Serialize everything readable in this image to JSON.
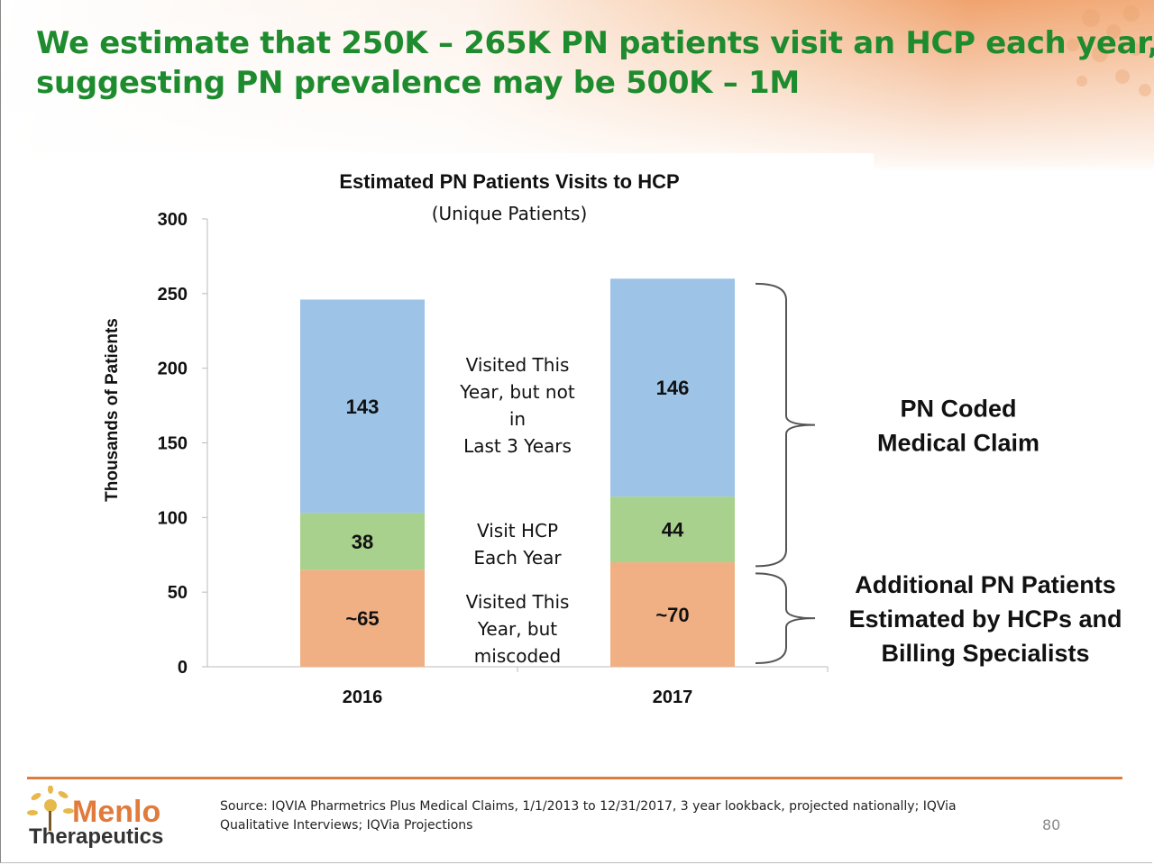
{
  "title": {
    "line1": "We estimate that 250K – 265K PN patients visit an HCP each year,",
    "line2": "suggesting PN prevalence may be 500K – 1M"
  },
  "chart_data": {
    "type": "bar",
    "stacked": true,
    "title": "Estimated PN Patients Visits to HCP",
    "subtitle": "(Unique Patients)",
    "ylabel": "Thousands of Patients",
    "xlabel": "",
    "ylim": [
      0,
      300
    ],
    "yticks": [
      0,
      50,
      100,
      150,
      200,
      250,
      300
    ],
    "categories": [
      "2016",
      "2017"
    ],
    "series": [
      {
        "name": "Visited This Year, but miscoded",
        "values": [
          65,
          70
        ],
        "labels": [
          "~65",
          "~70"
        ],
        "color": "#f0b084"
      },
      {
        "name": "Visit HCP Each Year",
        "values": [
          38,
          44
        ],
        "labels": [
          "38",
          "44"
        ],
        "color": "#a8d18d"
      },
      {
        "name": "Visited This Year, but not in Last 3 Years",
        "values": [
          143,
          146
        ],
        "labels": [
          "143",
          "146"
        ],
        "color": "#9dc3e6"
      }
    ],
    "middle_labels": [
      [
        "Visited This",
        "Year, but not",
        "in",
        "Last 3 Years"
      ],
      [
        "Visit HCP",
        "Each Year"
      ],
      [
        "Visited This",
        "Year, but",
        "miscoded"
      ]
    ],
    "brackets": [
      {
        "label_lines": [
          "PN Coded",
          "Medical Claim"
        ],
        "from": 65,
        "to": 259
      },
      {
        "label_lines": [
          "Additional PN Patients",
          "Estimated by HCPs and",
          "Billing Specialists"
        ],
        "from": 0,
        "to": 65
      }
    ]
  },
  "logo": {
    "word1": "Menlo",
    "word2": "Therapeutics"
  },
  "source": "Source: IQVIA Pharmetrics Plus Medical Claims, 1/1/2013 to 12/31/2017, 3 year lookback, projected nationally; IQVia Qualitative Interviews; IQVia Projections",
  "page_number": "80",
  "colors": {
    "title_green": "#1e8c2e",
    "accent_orange": "#e07b3c"
  }
}
